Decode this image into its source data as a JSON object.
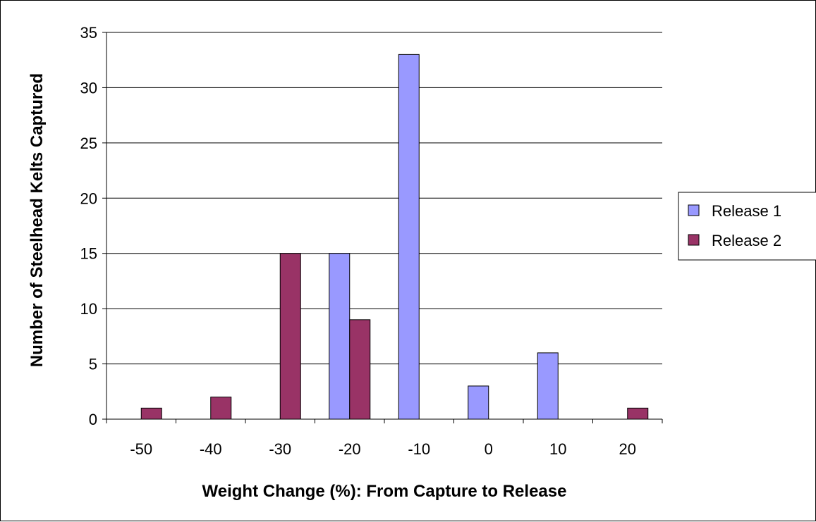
{
  "chart_data": {
    "type": "bar",
    "title": "",
    "xlabel": "Weight Change (%): From Capture to Release",
    "ylabel": "Number of Steelhead Kelts Captured",
    "categories": [
      "-50",
      "-40",
      "-30",
      "-20",
      "-10",
      "0",
      "10",
      "20"
    ],
    "series": [
      {
        "name": "Release 1",
        "values": [
          0,
          0,
          0,
          15,
          33,
          3,
          6,
          0
        ]
      },
      {
        "name": "Release 2",
        "values": [
          1,
          2,
          15,
          9,
          0,
          0,
          0,
          1
        ]
      }
    ],
    "ylim": [
      0,
      35
    ],
    "yticks": [
      0,
      5,
      10,
      15,
      20,
      25,
      30,
      35
    ],
    "grid": "horizontal",
    "legend": "right",
    "colors": {
      "Release 1": "#9999ff",
      "Release 2": "#993366",
      "grid": "#000000"
    }
  }
}
